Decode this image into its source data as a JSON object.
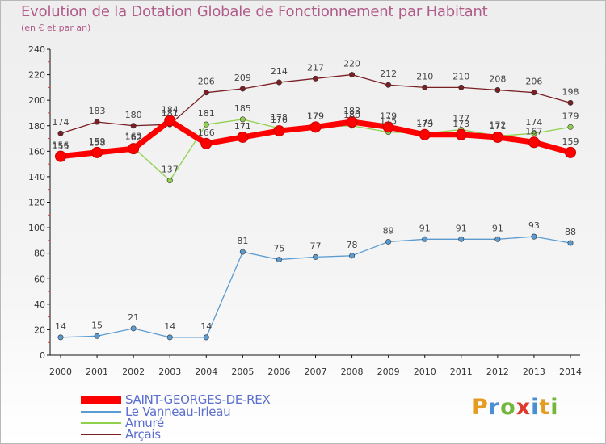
{
  "title": "Evolution de la Dotation Globale de Fonctionnement par Habitant",
  "subtitle": "(en € et par an)",
  "logo": {
    "p": "P",
    "r": "r",
    "o": "o",
    "x": "x",
    "i1": "i",
    "t": "t",
    "i2": "i"
  },
  "logo_colors": [
    "#e59b1f",
    "#4a8fd1",
    "#73b63b",
    "#e03a2e",
    "#4a8fd1",
    "#e59b1f",
    "#73b63b"
  ],
  "chart_data": {
    "type": "line",
    "title": "Evolution de la Dotation Globale de Fonctionnement par Habitant",
    "ylabel": "(en € et par an)",
    "xlabel": "",
    "categories": [
      "2000",
      "2001",
      "2002",
      "2003",
      "2004",
      "2005",
      "2006",
      "2007",
      "2008",
      "2009",
      "2010",
      "2011",
      "2012",
      "2013",
      "2014"
    ],
    "ylim": [
      0,
      240
    ],
    "yticks": [
      0,
      20,
      40,
      60,
      80,
      100,
      120,
      140,
      160,
      180,
      200,
      220,
      240
    ],
    "grid": false,
    "legend": "bottom-left",
    "series": [
      {
        "name": "Arçais",
        "color": "#7a1f24",
        "values": [
          174,
          183,
          180,
          181,
          206,
          209,
          214,
          217,
          220,
          212,
          210,
          210,
          208,
          206,
          198
        ]
      },
      {
        "name": "Amuré",
        "color": "#8fd04d",
        "values": [
          155,
          158,
          163,
          137,
          181,
          185,
          178,
          179,
          180,
          175,
          174,
          177,
          172,
          174,
          179
        ]
      },
      {
        "name": "Le Vanneau-Irleau",
        "color": "#5b9bd0",
        "values": [
          14,
          15,
          21,
          14,
          14,
          81,
          75,
          77,
          78,
          89,
          91,
          91,
          91,
          93,
          88
        ]
      },
      {
        "name": "SAINT-GEORGES-DE-REX",
        "color": "#ff0000",
        "values": [
          156,
          159,
          162,
          184,
          166,
          171,
          176,
          179,
          183,
          179,
          173,
          173,
          171,
          167,
          159
        ]
      }
    ],
    "legend_order": [
      "SAINT-GEORGES-DE-REX",
      "Le Vanneau-Irleau",
      "Amuré",
      "Arçais"
    ]
  }
}
